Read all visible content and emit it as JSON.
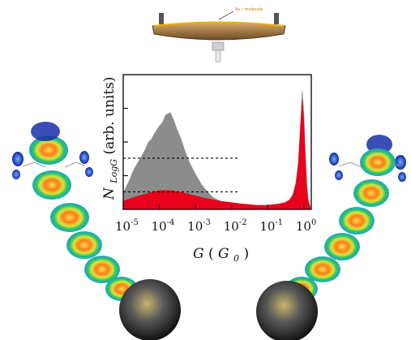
{
  "figure": {
    "inset_caption": "Au / molecule",
    "left_tip_label": "",
    "right_tip_label": ""
  },
  "chart_data": {
    "type": "area",
    "xscale": "log",
    "xlim": [
      1e-05,
      1.6
    ],
    "xticks": [
      {
        "base": "10",
        "exp": "-5"
      },
      {
        "base": "10",
        "exp": "-4"
      },
      {
        "base": "10",
        "exp": "-3"
      },
      {
        "base": "10",
        "exp": "-2"
      },
      {
        "base": "10",
        "exp": "-1"
      },
      {
        "base": "10",
        "exp": "0"
      }
    ],
    "xlabel": {
      "main": "G",
      "open": "(",
      "sub_main": "G",
      "sub": "0",
      "close": ")"
    },
    "ylabel": {
      "main": "N",
      "sub": "LogG",
      "rest": " (arb. units)"
    },
    "ylim": [
      0,
      1
    ],
    "grid": false,
    "reference_lines": [
      0.38,
      0.13
    ],
    "series": [
      {
        "color": "#8c8c8c",
        "x": [
          1e-05,
          1.5e-05,
          2e-05,
          3e-05,
          4e-05,
          5e-05,
          6e-05,
          8e-05,
          0.0001,
          0.00012,
          0.00015,
          0.0002,
          0.00025,
          0.0003,
          0.0004,
          0.0005,
          0.0007,
          0.001,
          0.0015,
          0.002,
          0.003,
          0.005,
          0.008,
          0.01,
          0.02,
          0.05,
          0.1,
          0.2,
          0.3,
          0.4,
          0.5,
          0.6,
          0.7,
          0.8,
          0.9,
          1.0,
          1.1,
          1.2,
          1.3,
          1.5
        ],
        "values": [
          0.12,
          0.22,
          0.3,
          0.38,
          0.44,
          0.5,
          0.52,
          0.58,
          0.62,
          0.64,
          0.7,
          0.72,
          0.66,
          0.6,
          0.52,
          0.44,
          0.34,
          0.26,
          0.18,
          0.14,
          0.09,
          0.06,
          0.05,
          0.04,
          0.04,
          0.03,
          0.03,
          0.04,
          0.05,
          0.07,
          0.12,
          0.2,
          0.35,
          0.62,
          0.88,
          0.7,
          0.4,
          0.2,
          0.08,
          0.02
        ]
      },
      {
        "color": "#e8001c",
        "x": [
          1e-05,
          2e-05,
          5e-05,
          0.0001,
          0.0002,
          0.0005,
          0.001,
          0.002,
          0.005,
          0.01,
          0.02,
          0.05,
          0.1,
          0.2,
          0.3,
          0.4,
          0.5,
          0.6,
          0.7,
          0.8,
          0.9,
          1.0,
          1.1,
          1.2,
          1.3,
          1.5
        ],
        "values": [
          0.06,
          0.09,
          0.12,
          0.14,
          0.14,
          0.12,
          0.1,
          0.08,
          0.06,
          0.05,
          0.04,
          0.03,
          0.03,
          0.04,
          0.05,
          0.07,
          0.1,
          0.18,
          0.32,
          0.6,
          0.82,
          0.62,
          0.36,
          0.16,
          0.06,
          0.01
        ]
      }
    ]
  }
}
